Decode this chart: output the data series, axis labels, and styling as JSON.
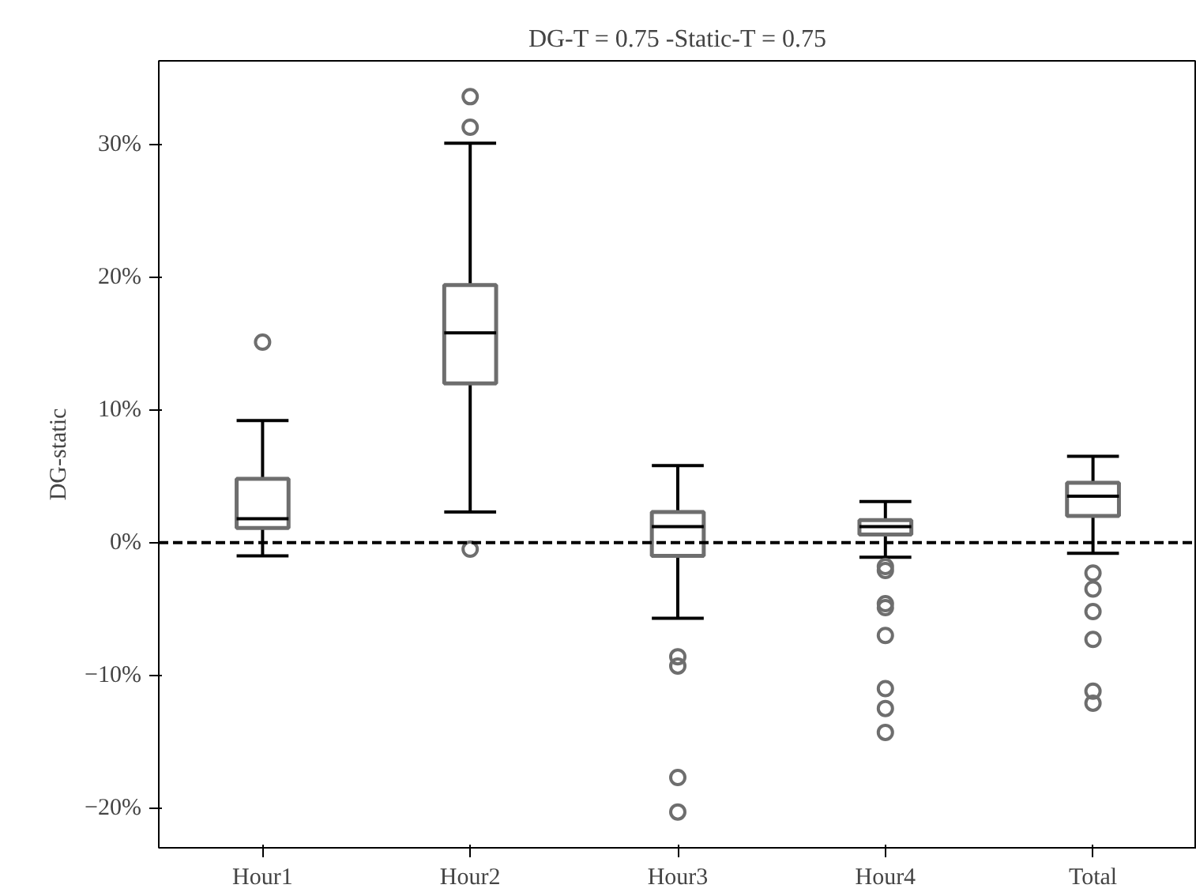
{
  "chart_data": {
    "type": "box",
    "title": "DG-T = 0.75 -Static-T = 0.75",
    "ylabel": "DG-static",
    "categories": [
      "Hour1",
      "Hour2",
      "Hour3",
      "Hour4",
      "Total"
    ],
    "color": "#6e6e6e",
    "boxes": [
      {
        "low": -1.0,
        "q1": 1.1,
        "median": 1.8,
        "q3": 4.8,
        "high": 9.2,
        "outliers": [
          15.1
        ]
      },
      {
        "low": 2.3,
        "q1": 12.0,
        "median": 15.8,
        "q3": 19.4,
        "high": 30.1,
        "outliers": [
          33.6,
          31.3,
          -0.5
        ]
      },
      {
        "low": -5.7,
        "q1": -1.0,
        "median": 1.2,
        "q3": 2.3,
        "high": 5.8,
        "outliers": [
          -8.6,
          -9.3,
          -17.7,
          -20.3
        ]
      },
      {
        "low": -1.1,
        "q1": 0.6,
        "median": 1.2,
        "q3": 1.7,
        "high": 3.1,
        "outliers": [
          -1.8,
          -2.1,
          -4.6,
          -4.9,
          -7.0,
          -11.0,
          -12.5,
          -14.3
        ]
      },
      {
        "low": -0.8,
        "q1": 2.0,
        "median": 3.5,
        "q3": 4.5,
        "high": 6.5,
        "outliers": [
          -2.3,
          -3.5,
          -5.2,
          -7.3,
          -11.2,
          -12.1
        ]
      }
    ],
    "ylim": [
      -23.0,
      36.3
    ],
    "yticks": [
      {
        "value": -20,
        "label": "−20%"
      },
      {
        "value": -10,
        "label": "−10%"
      },
      {
        "value": 0,
        "label": "0%"
      },
      {
        "value": 10,
        "label": "10%"
      },
      {
        "value": 20,
        "label": "20%"
      },
      {
        "value": 30,
        "label": "30%"
      }
    ],
    "ref_lines": [
      {
        "axis": "y",
        "value": 0,
        "label": null,
        "color": "#000000",
        "line_style": "dashed"
      }
    ],
    "grid": false
  }
}
